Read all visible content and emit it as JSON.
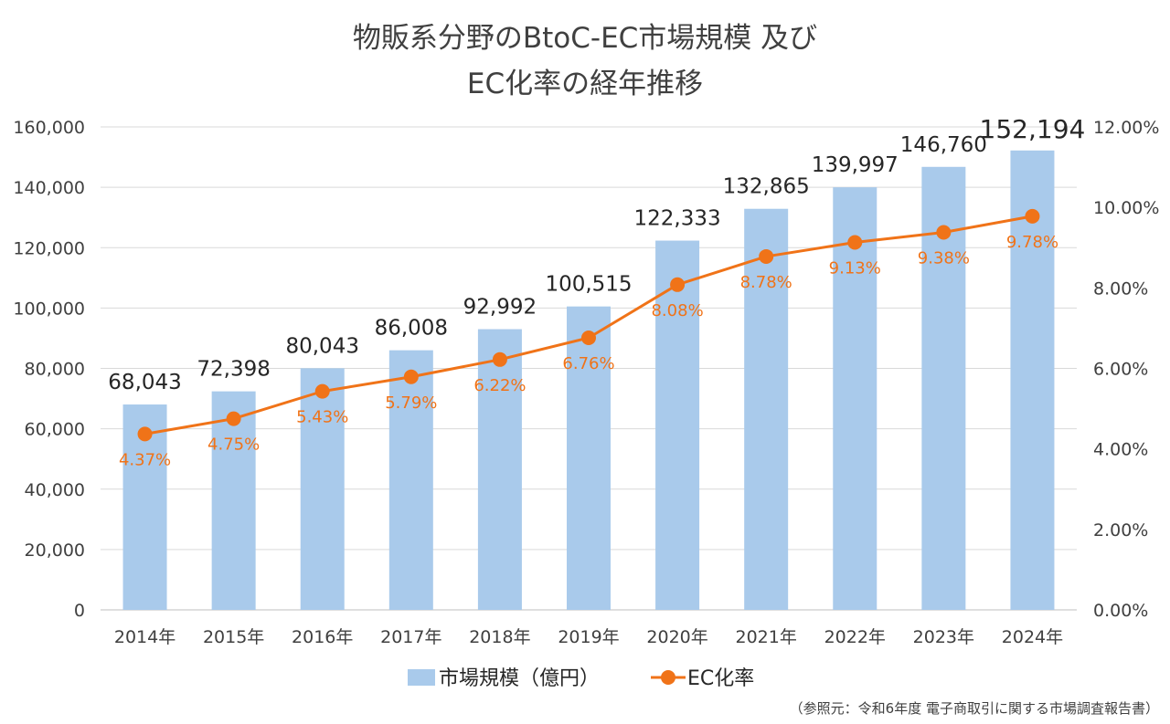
{
  "chart_data": {
    "type": "bar+line",
    "title_lines": [
      "物販系分野のBtoC-EC市場規模 及び",
      "EC化率の経年推移"
    ],
    "categories": [
      "2014年",
      "2015年",
      "2016年",
      "2017年",
      "2018年",
      "2019年",
      "2020年",
      "2021年",
      "2022年",
      "2023年",
      "2024年"
    ],
    "series": [
      {
        "name": "市場規模（億円）",
        "type": "bar",
        "axis": "left",
        "values": [
          68043,
          72398,
          80043,
          86008,
          92992,
          100515,
          122333,
          132865,
          139997,
          146760,
          152194
        ],
        "labels": [
          "68,043",
          "72,398",
          "80,043",
          "86,008",
          "92,992",
          "100,515",
          "122,333",
          "132,865",
          "139,997",
          "146,760",
          "152,194"
        ],
        "color": "#a9caeb"
      },
      {
        "name": "EC化率",
        "type": "line",
        "axis": "right",
        "values": [
          4.37,
          4.75,
          5.43,
          5.79,
          6.22,
          6.76,
          8.08,
          8.78,
          9.13,
          9.38,
          9.78
        ],
        "labels": [
          "4.37%",
          "4.75%",
          "5.43%",
          "5.79%",
          "6.22%",
          "6.76%",
          "8.08%",
          "8.78%",
          "9.13%",
          "9.38%",
          "9.78%"
        ],
        "color": "#f07318"
      }
    ],
    "y_left": {
      "range": [
        0,
        160000
      ],
      "ticks": [
        0,
        20000,
        40000,
        60000,
        80000,
        100000,
        120000,
        140000,
        160000
      ],
      "tick_labels": [
        "0",
        "20,000",
        "40,000",
        "60,000",
        "80,000",
        "100,000",
        "120,000",
        "140,000",
        "160,000"
      ]
    },
    "y_right": {
      "range": [
        0,
        12
      ],
      "ticks": [
        0,
        2,
        4,
        6,
        8,
        10,
        12
      ],
      "tick_labels": [
        "0.00%",
        "2.00%",
        "4.00%",
        "6.00%",
        "8.00%",
        "10.00%",
        "12.00%"
      ]
    },
    "grid": true,
    "legend_position": "bottom-center",
    "legend": [
      "市場規模（億円）",
      "EC化率"
    ],
    "source_note": "（参照元：令和6年度 電子商取引に関する市場調査報告書）"
  }
}
